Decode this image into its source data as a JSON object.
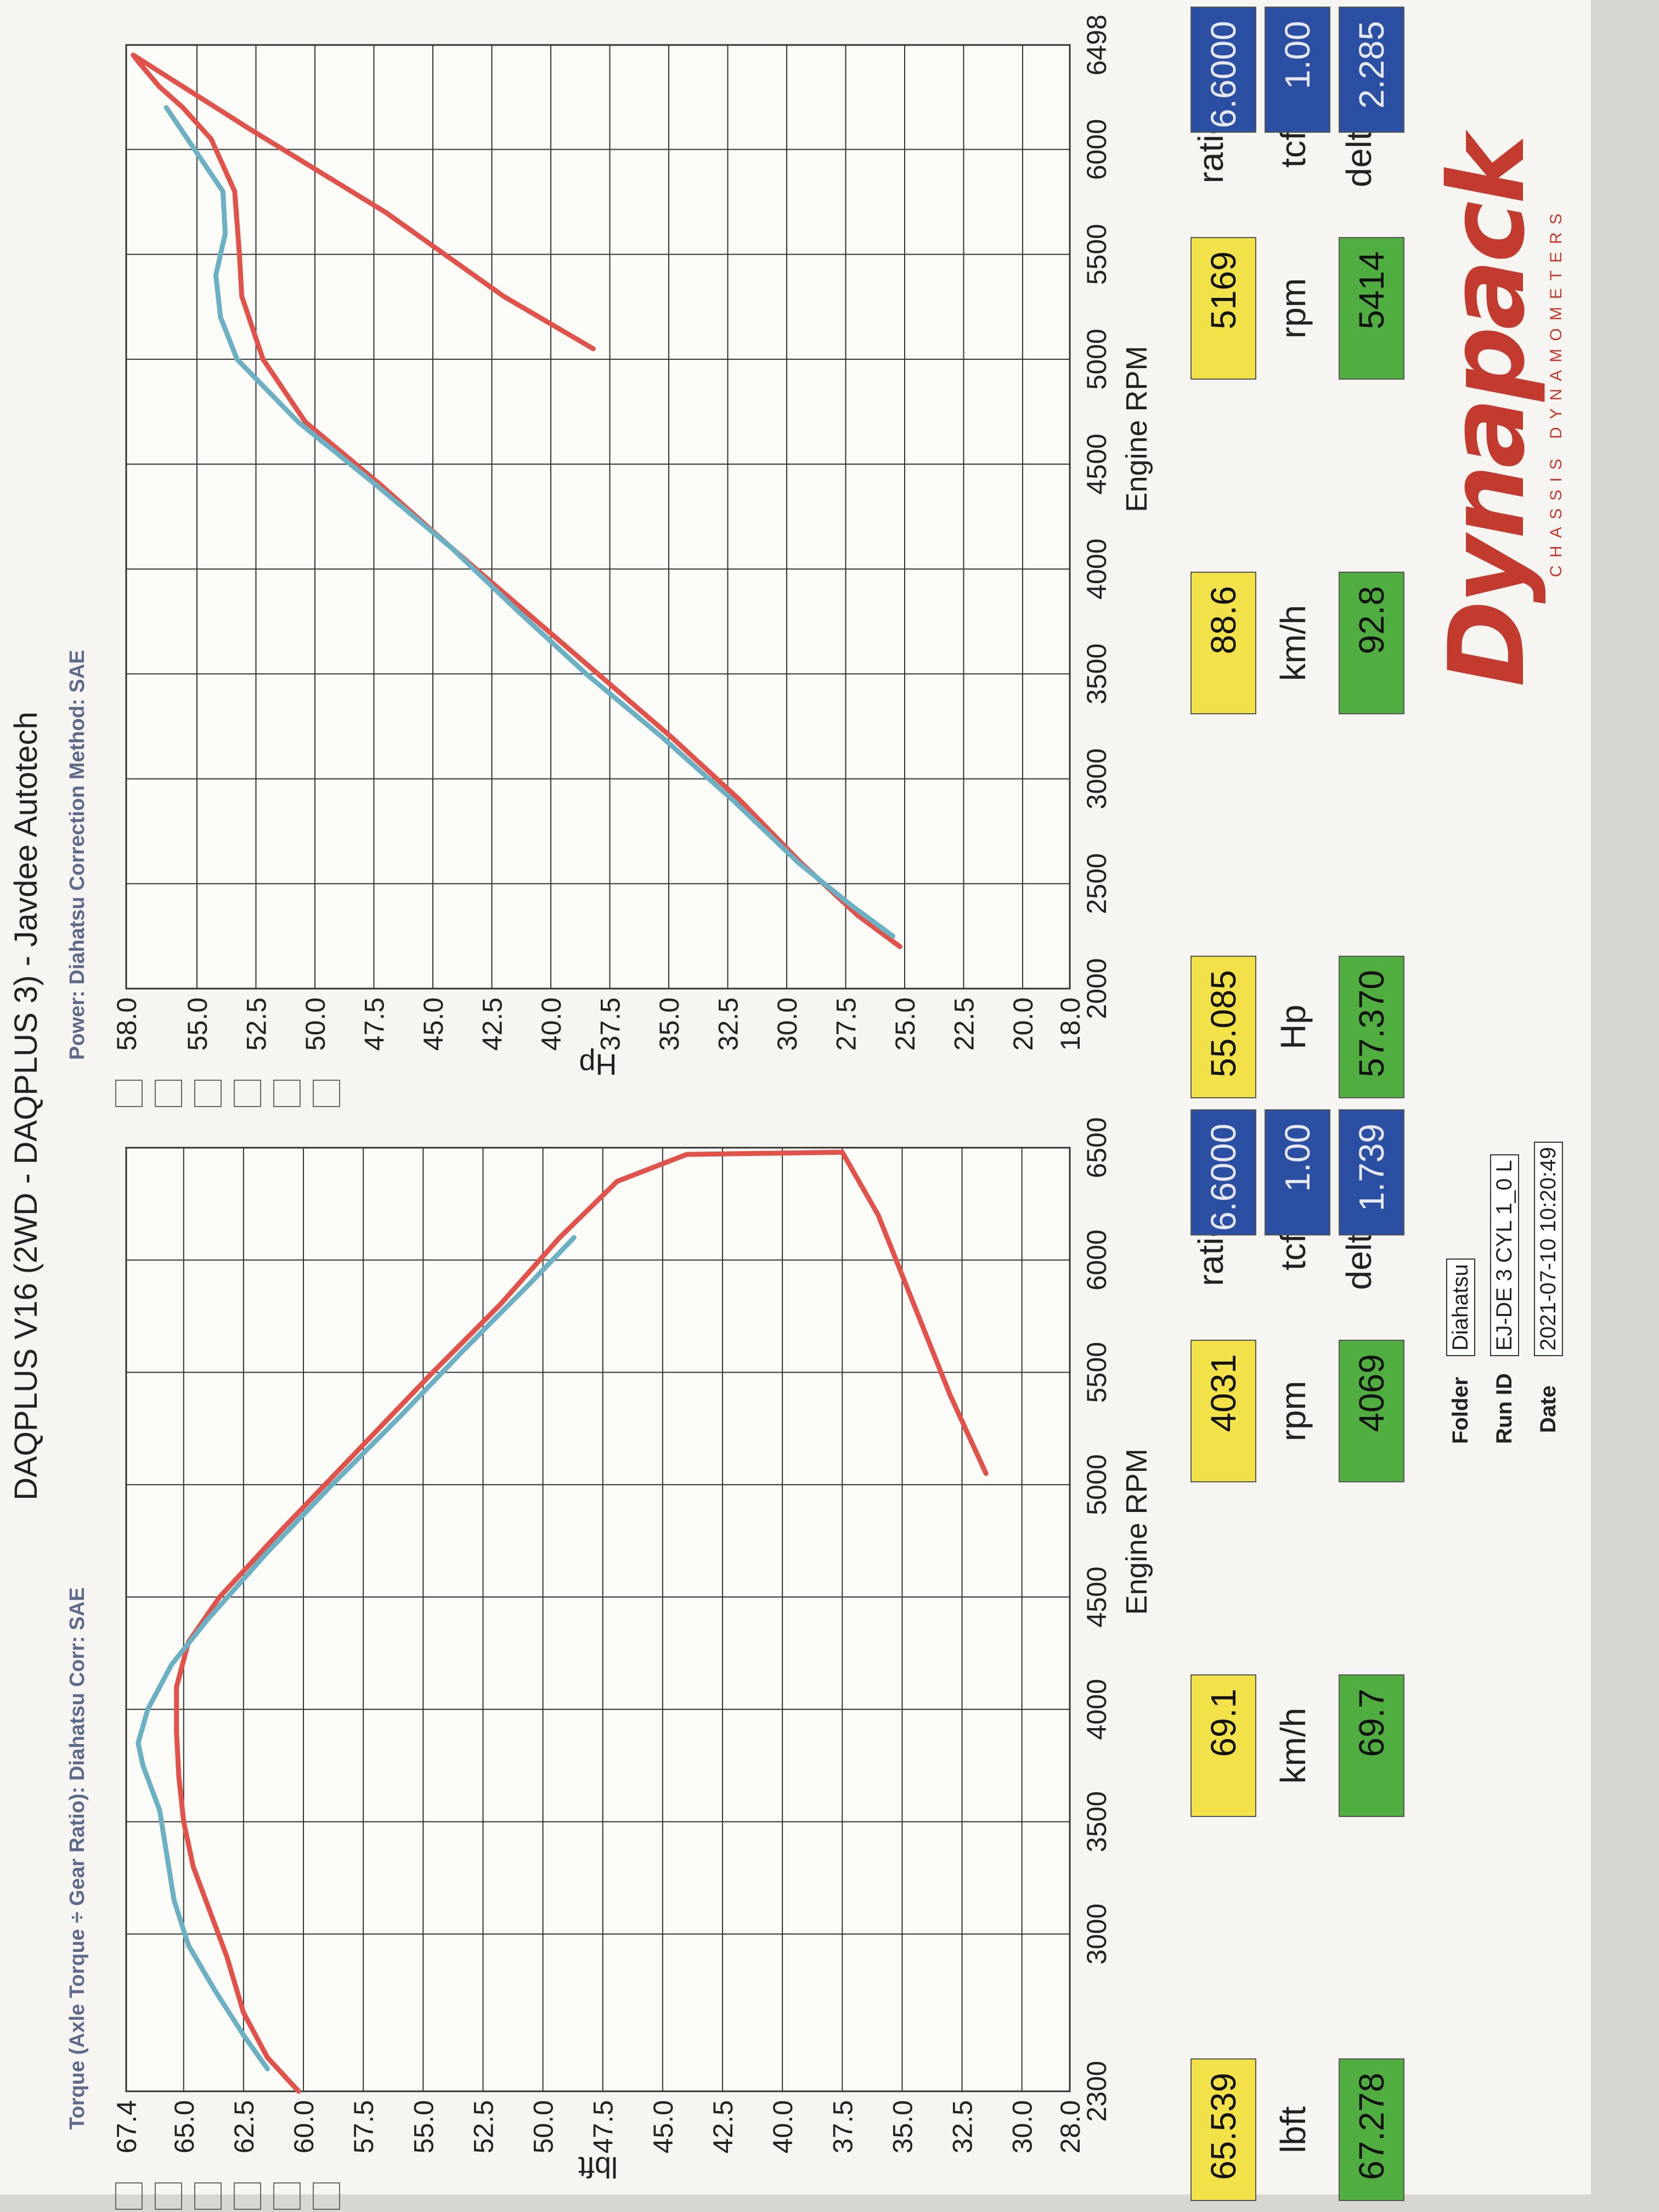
{
  "header": {
    "title": "DAQPLUS V16 (2WD - DAQPLUS 3) - Javdee Autotech",
    "left_sub": "Torque (Axle Torque ÷ Gear Ratio): Diahatsu   Corr: SAE",
    "right_sub": "Power: Diahatsu        Correction Method: SAE"
  },
  "colors": {
    "run1": "#e0524a",
    "run2": "#6bb1c3",
    "grid": "#333333",
    "swatches": [
      "#e0524a",
      "#3f9a48",
      "#2f6fd0",
      "#d24a92",
      "#6bb1c3",
      "#e07a34"
    ]
  },
  "chart_data": [
    {
      "type": "line",
      "title": "",
      "xlabel": "Engine RPM",
      "ylabel": "lbft",
      "xlim": [
        2300,
        6500
      ],
      "ylim": [
        28.0,
        67.4
      ],
      "x_ticks": [
        "2300",
        "3000",
        "3500",
        "4000",
        "4500",
        "5000",
        "5500",
        "6000",
        "6500"
      ],
      "y_ticks": [
        "67.4",
        "65.0",
        "62.5",
        "60.0",
        "57.5",
        "55.0",
        "52.5",
        "50.0",
        "47.5",
        "45.0",
        "42.5",
        "40.0",
        "37.5",
        "35.0",
        "32.5",
        "30.0",
        "28.0"
      ],
      "series": [
        {
          "color": "#e0524a",
          "x": [
            2300,
            2450,
            2650,
            2900,
            3100,
            3300,
            3500,
            3700,
            3900,
            4100,
            4300,
            4500,
            4800,
            5200,
            5500,
            5800,
            6100,
            6350,
            6470,
            6480,
            6200,
            5800,
            5400,
            5050
          ],
          "y": [
            60.2,
            61.5,
            62.5,
            63.2,
            63.9,
            64.6,
            65.0,
            65.2,
            65.3,
            65.3,
            64.8,
            63.5,
            60.9,
            57.3,
            54.6,
            51.8,
            49.3,
            46.9,
            44.0,
            37.5,
            36.0,
            34.5,
            33.0,
            31.5
          ]
        },
        {
          "color": "#6bb1c3",
          "x": [
            2400,
            2550,
            2750,
            2950,
            3150,
            3350,
            3550,
            3750,
            3850,
            4000,
            4200,
            4400,
            4700,
            5000,
            5300,
            5600,
            5900,
            6100
          ],
          "y": [
            61.5,
            62.5,
            63.7,
            64.8,
            65.4,
            65.7,
            66.0,
            66.7,
            66.9,
            66.5,
            65.5,
            64.0,
            61.5,
            58.8,
            56.0,
            53.3,
            50.5,
            48.7
          ]
        }
      ]
    },
    {
      "type": "line",
      "title": "",
      "xlabel": "Engine RPM",
      "ylabel": "Hp",
      "xlim": [
        2000,
        6498
      ],
      "ylim": [
        18.0,
        58.0
      ],
      "x_ticks": [
        "2000",
        "2500",
        "3000",
        "3500",
        "4000",
        "4500",
        "5000",
        "5500",
        "6000",
        "6498"
      ],
      "y_ticks": [
        "58.0",
        "55.0",
        "52.5",
        "50.0",
        "47.5",
        "45.0",
        "42.5",
        "40.0",
        "37.5",
        "35.0",
        "32.5",
        "30.0",
        "27.5",
        "25.0",
        "22.5",
        "20.0",
        "18.0"
      ],
      "series": [
        {
          "color": "#e0524a",
          "x": [
            2200,
            2350,
            2600,
            2900,
            3200,
            3500,
            3800,
            4100,
            4400,
            4700,
            5000,
            5300,
            5500,
            5800,
            6050,
            6200,
            6300,
            6420,
            6450,
            6100,
            5700,
            5300,
            5050
          ],
          "y": [
            25.2,
            27.0,
            29.4,
            32.0,
            34.9,
            38.0,
            41.1,
            44.2,
            47.2,
            50.4,
            52.2,
            53.1,
            53.2,
            53.4,
            54.4,
            55.6,
            56.6,
            57.5,
            57.7,
            52.8,
            47.0,
            42.0,
            38.2
          ]
        },
        {
          "color": "#6bb1c3",
          "x": [
            2250,
            2400,
            2600,
            2900,
            3200,
            3500,
            3800,
            4100,
            4400,
            4700,
            5000,
            5200,
            5400,
            5600,
            5800,
            6050,
            6200
          ],
          "y": [
            25.5,
            27.3,
            29.5,
            32.3,
            35.3,
            38.5,
            41.4,
            44.2,
            47.4,
            50.7,
            53.3,
            54.0,
            54.2,
            53.8,
            53.9,
            55.4,
            56.3
          ]
        }
      ]
    }
  ],
  "readouts": {
    "left": {
      "row1": [
        "65.539",
        "69.1",
        "4031"
      ],
      "units": [
        "lbft",
        "km/h",
        "rpm"
      ],
      "row2": [
        "67.278",
        "69.7",
        "4069"
      ],
      "side_labels": [
        "ratio",
        "tcf",
        "delta"
      ],
      "side_values": [
        "6.6000",
        "1.00",
        "1.739"
      ]
    },
    "right": {
      "row1": [
        "55.085",
        "88.6",
        "5169"
      ],
      "units": [
        "Hp",
        "km/h",
        "rpm"
      ],
      "row2": [
        "57.370",
        "92.8",
        "5414"
      ],
      "side_labels": [
        "ratio",
        "tcf",
        "delta"
      ],
      "side_values": [
        "6.6000",
        "1.00",
        "2.285"
      ]
    }
  },
  "meta": {
    "folder_label": "Folder",
    "folder_value": "Diahatsu",
    "runid_label": "Run ID",
    "runid_value": "EJ-DE 3 CYL 1_0 L",
    "date_label": "Date",
    "date_value": "2021-07-10 10:20:49"
  },
  "logo": {
    "text": "Dynapack",
    "sub": "CHASSIS DYNAMOMETERS"
  }
}
